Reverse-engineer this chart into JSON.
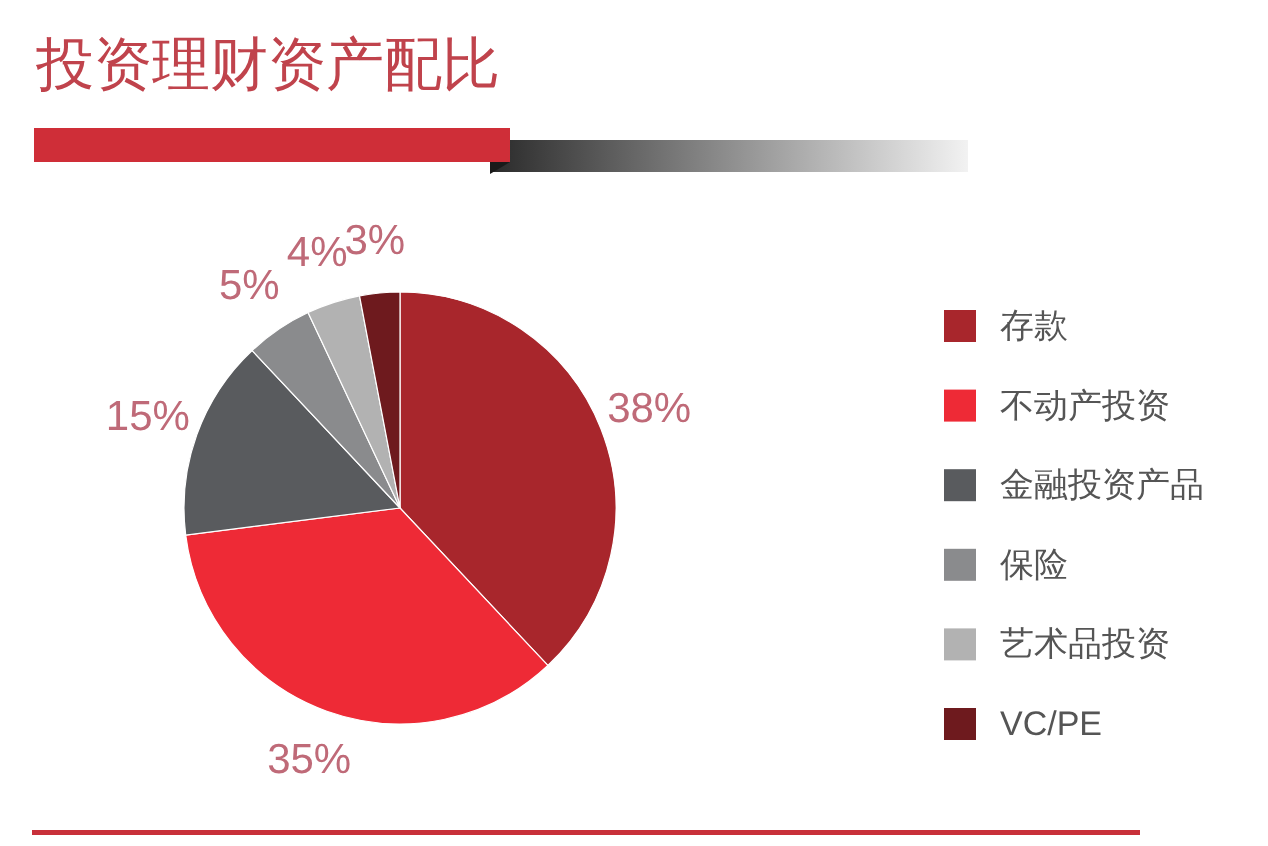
{
  "chart_data": {
    "type": "pie",
    "title": "投资理财资产配比",
    "categories": [
      "存款",
      "不动产投资",
      "金融投资产品",
      "保险",
      "艺术品投资",
      "VC/PE"
    ],
    "values": [
      38,
      35,
      15,
      5,
      4,
      3
    ],
    "colors": [
      "#a8262c",
      "#ee2a36",
      "#595b5e",
      "#8a8b8d",
      "#b2b2b2",
      "#6e1a1e"
    ],
    "value_labels": [
      "38%",
      "35%",
      "15%",
      "5%",
      "4%",
      "3%"
    ],
    "legend": "right"
  }
}
